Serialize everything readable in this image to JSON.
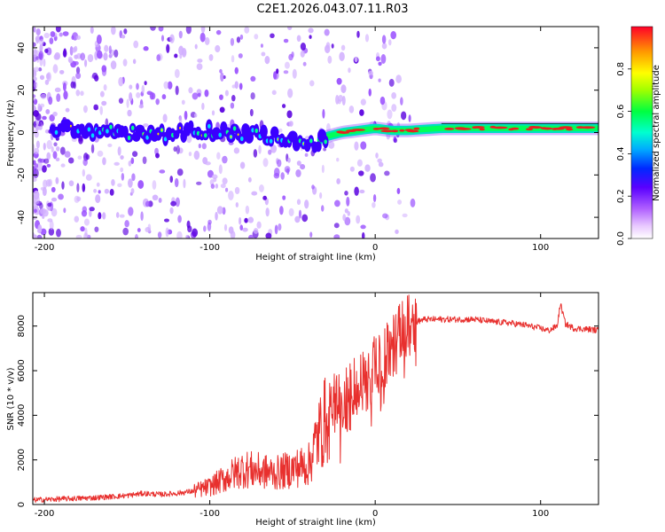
{
  "title": "C2E1.2026.043.07.11.R03",
  "colors": {
    "line": "#e8302e",
    "frame": "#000000",
    "ridge_low": "#2b00ff",
    "ridge_mid": "#00ffc8",
    "ridge_high": "#e01e1e"
  },
  "chart_data": [
    {
      "type": "heatmap",
      "name": "spectrogram",
      "xlabel": "Height of straight line (km)",
      "ylabel": "Frequency (Hz)",
      "xlim": [
        -207,
        135
      ],
      "ylim": [
        -50,
        50
      ],
      "xticks": [
        -200,
        -100,
        0,
        100
      ],
      "xtick_labels": [
        "-200",
        "-100",
        "0",
        "100"
      ],
      "yticks": [
        -40,
        -20,
        0,
        20,
        40
      ],
      "ytick_labels": [
        "-40",
        "-20",
        "0",
        "20",
        "40"
      ],
      "colorbar": {
        "label": "Normalized spectral amplitude",
        "range": [
          0,
          1
        ],
        "ticks": [
          0.0,
          0.2,
          0.4,
          0.6,
          0.8
        ],
        "tick_labels": [
          "0.0",
          "0.2",
          "0.4",
          "0.6",
          "0.8"
        ]
      },
      "ridge": {
        "x": [
          -207,
          -190,
          -170,
          -150,
          -130,
          -110,
          -90,
          -70,
          -55,
          -45,
          -38,
          -30,
          -20,
          -10,
          0,
          10,
          20,
          40,
          60,
          80,
          100,
          120,
          135
        ],
        "freq": [
          0,
          1,
          1,
          0,
          -1,
          1,
          0,
          -1,
          -3,
          -4,
          -6,
          -2,
          0,
          1,
          2,
          1,
          1,
          2,
          2,
          2,
          2,
          2,
          2
        ]
      }
    },
    {
      "type": "line",
      "name": "snr",
      "xlabel": "Height of straight line (km)",
      "ylabel": "SNR (10 * v/v)",
      "xlim": [
        -207,
        135
      ],
      "ylim": [
        0,
        9500
      ],
      "xticks": [
        -200,
        -100,
        0,
        100
      ],
      "xtick_labels": [
        "-200",
        "-100",
        "0",
        "100"
      ],
      "yticks": [
        0,
        2000,
        4000,
        6000,
        8000
      ],
      "ytick_labels": [
        "0",
        "2000",
        "4000",
        "6000",
        "8000"
      ],
      "series": [
        {
          "name": "SNR",
          "x": [
            -207,
            -190,
            -170,
            -150,
            -140,
            -130,
            -120,
            -110,
            -100,
            -90,
            -80,
            -70,
            -60,
            -50,
            -40,
            -35,
            -30,
            -25,
            -20,
            -15,
            -10,
            -5,
            0,
            5,
            10,
            15,
            20,
            25,
            30,
            40,
            50,
            60,
            70,
            80,
            90,
            100,
            105,
            110,
            112,
            115,
            120,
            130,
            135
          ],
          "y": [
            200,
            250,
            300,
            400,
            500,
            450,
            500,
            600,
            800,
            1200,
            1600,
            1500,
            1400,
            1600,
            1800,
            3000,
            3800,
            4500,
            4700,
            5000,
            5400,
            5600,
            6100,
            6500,
            7000,
            7600,
            8000,
            8200,
            8300,
            8300,
            8300,
            8300,
            8200,
            8150,
            8050,
            7900,
            7800,
            8000,
            9000,
            8100,
            7900,
            7850,
            7800
          ]
        }
      ]
    }
  ]
}
